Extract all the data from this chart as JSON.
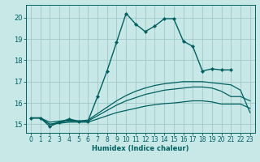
{
  "xlabel": "Humidex (Indice chaleur)",
  "bg_color": "#c8e8e8",
  "grid_color": "#a0c8c8",
  "line_color": "#006060",
  "spine_color": "#006060",
  "xlim": [
    -0.5,
    23.5
  ],
  "ylim": [
    14.6,
    20.6
  ],
  "xticks": [
    0,
    1,
    2,
    3,
    4,
    5,
    6,
    7,
    8,
    9,
    10,
    11,
    12,
    13,
    14,
    15,
    16,
    17,
    18,
    19,
    20,
    21,
    22,
    23
  ],
  "yticks": [
    15,
    16,
    17,
    18,
    19,
    20
  ],
  "main_x": [
    0,
    1,
    2,
    3,
    4,
    5,
    6,
    7,
    8,
    9,
    10,
    11,
    12,
    13,
    14,
    15,
    16,
    17,
    18,
    19,
    20,
    21
  ],
  "main_y": [
    15.3,
    15.3,
    14.9,
    15.1,
    15.25,
    15.15,
    15.15,
    16.3,
    17.5,
    18.85,
    20.2,
    19.7,
    19.35,
    19.6,
    19.95,
    19.95,
    18.9,
    18.65,
    17.5,
    17.6,
    17.55,
    17.55
  ],
  "env1_x": [
    0,
    1,
    2,
    3,
    4,
    5,
    6,
    7,
    8,
    9,
    10,
    11,
    12,
    13,
    14,
    15,
    16,
    17,
    18,
    19,
    20,
    21,
    22,
    23
  ],
  "env1_y": [
    15.3,
    15.3,
    15.1,
    15.15,
    15.2,
    15.15,
    15.2,
    15.5,
    15.8,
    16.1,
    16.35,
    16.55,
    16.7,
    16.82,
    16.9,
    16.95,
    17.0,
    17.0,
    17.0,
    16.95,
    16.9,
    16.85,
    16.6,
    15.55
  ],
  "env2_x": [
    0,
    1,
    2,
    3,
    4,
    5,
    6,
    7,
    8,
    9,
    10,
    11,
    12,
    13,
    14,
    15,
    16,
    17,
    18,
    19,
    20,
    21,
    22,
    23
  ],
  "env2_y": [
    15.3,
    15.3,
    15.0,
    15.1,
    15.15,
    15.15,
    15.15,
    15.4,
    15.65,
    15.9,
    16.1,
    16.25,
    16.4,
    16.5,
    16.6,
    16.65,
    16.7,
    16.75,
    16.75,
    16.7,
    16.55,
    16.3,
    16.3,
    16.1
  ],
  "env3_x": [
    0,
    1,
    2,
    3,
    4,
    5,
    6,
    7,
    8,
    9,
    10,
    11,
    12,
    13,
    14,
    15,
    16,
    17,
    18,
    19,
    20,
    21,
    22,
    23
  ],
  "env3_y": [
    15.3,
    15.3,
    15.0,
    15.05,
    15.1,
    15.1,
    15.1,
    15.25,
    15.4,
    15.55,
    15.65,
    15.75,
    15.85,
    15.92,
    15.97,
    16.0,
    16.05,
    16.1,
    16.1,
    16.05,
    15.95,
    15.95,
    15.95,
    15.75
  ]
}
